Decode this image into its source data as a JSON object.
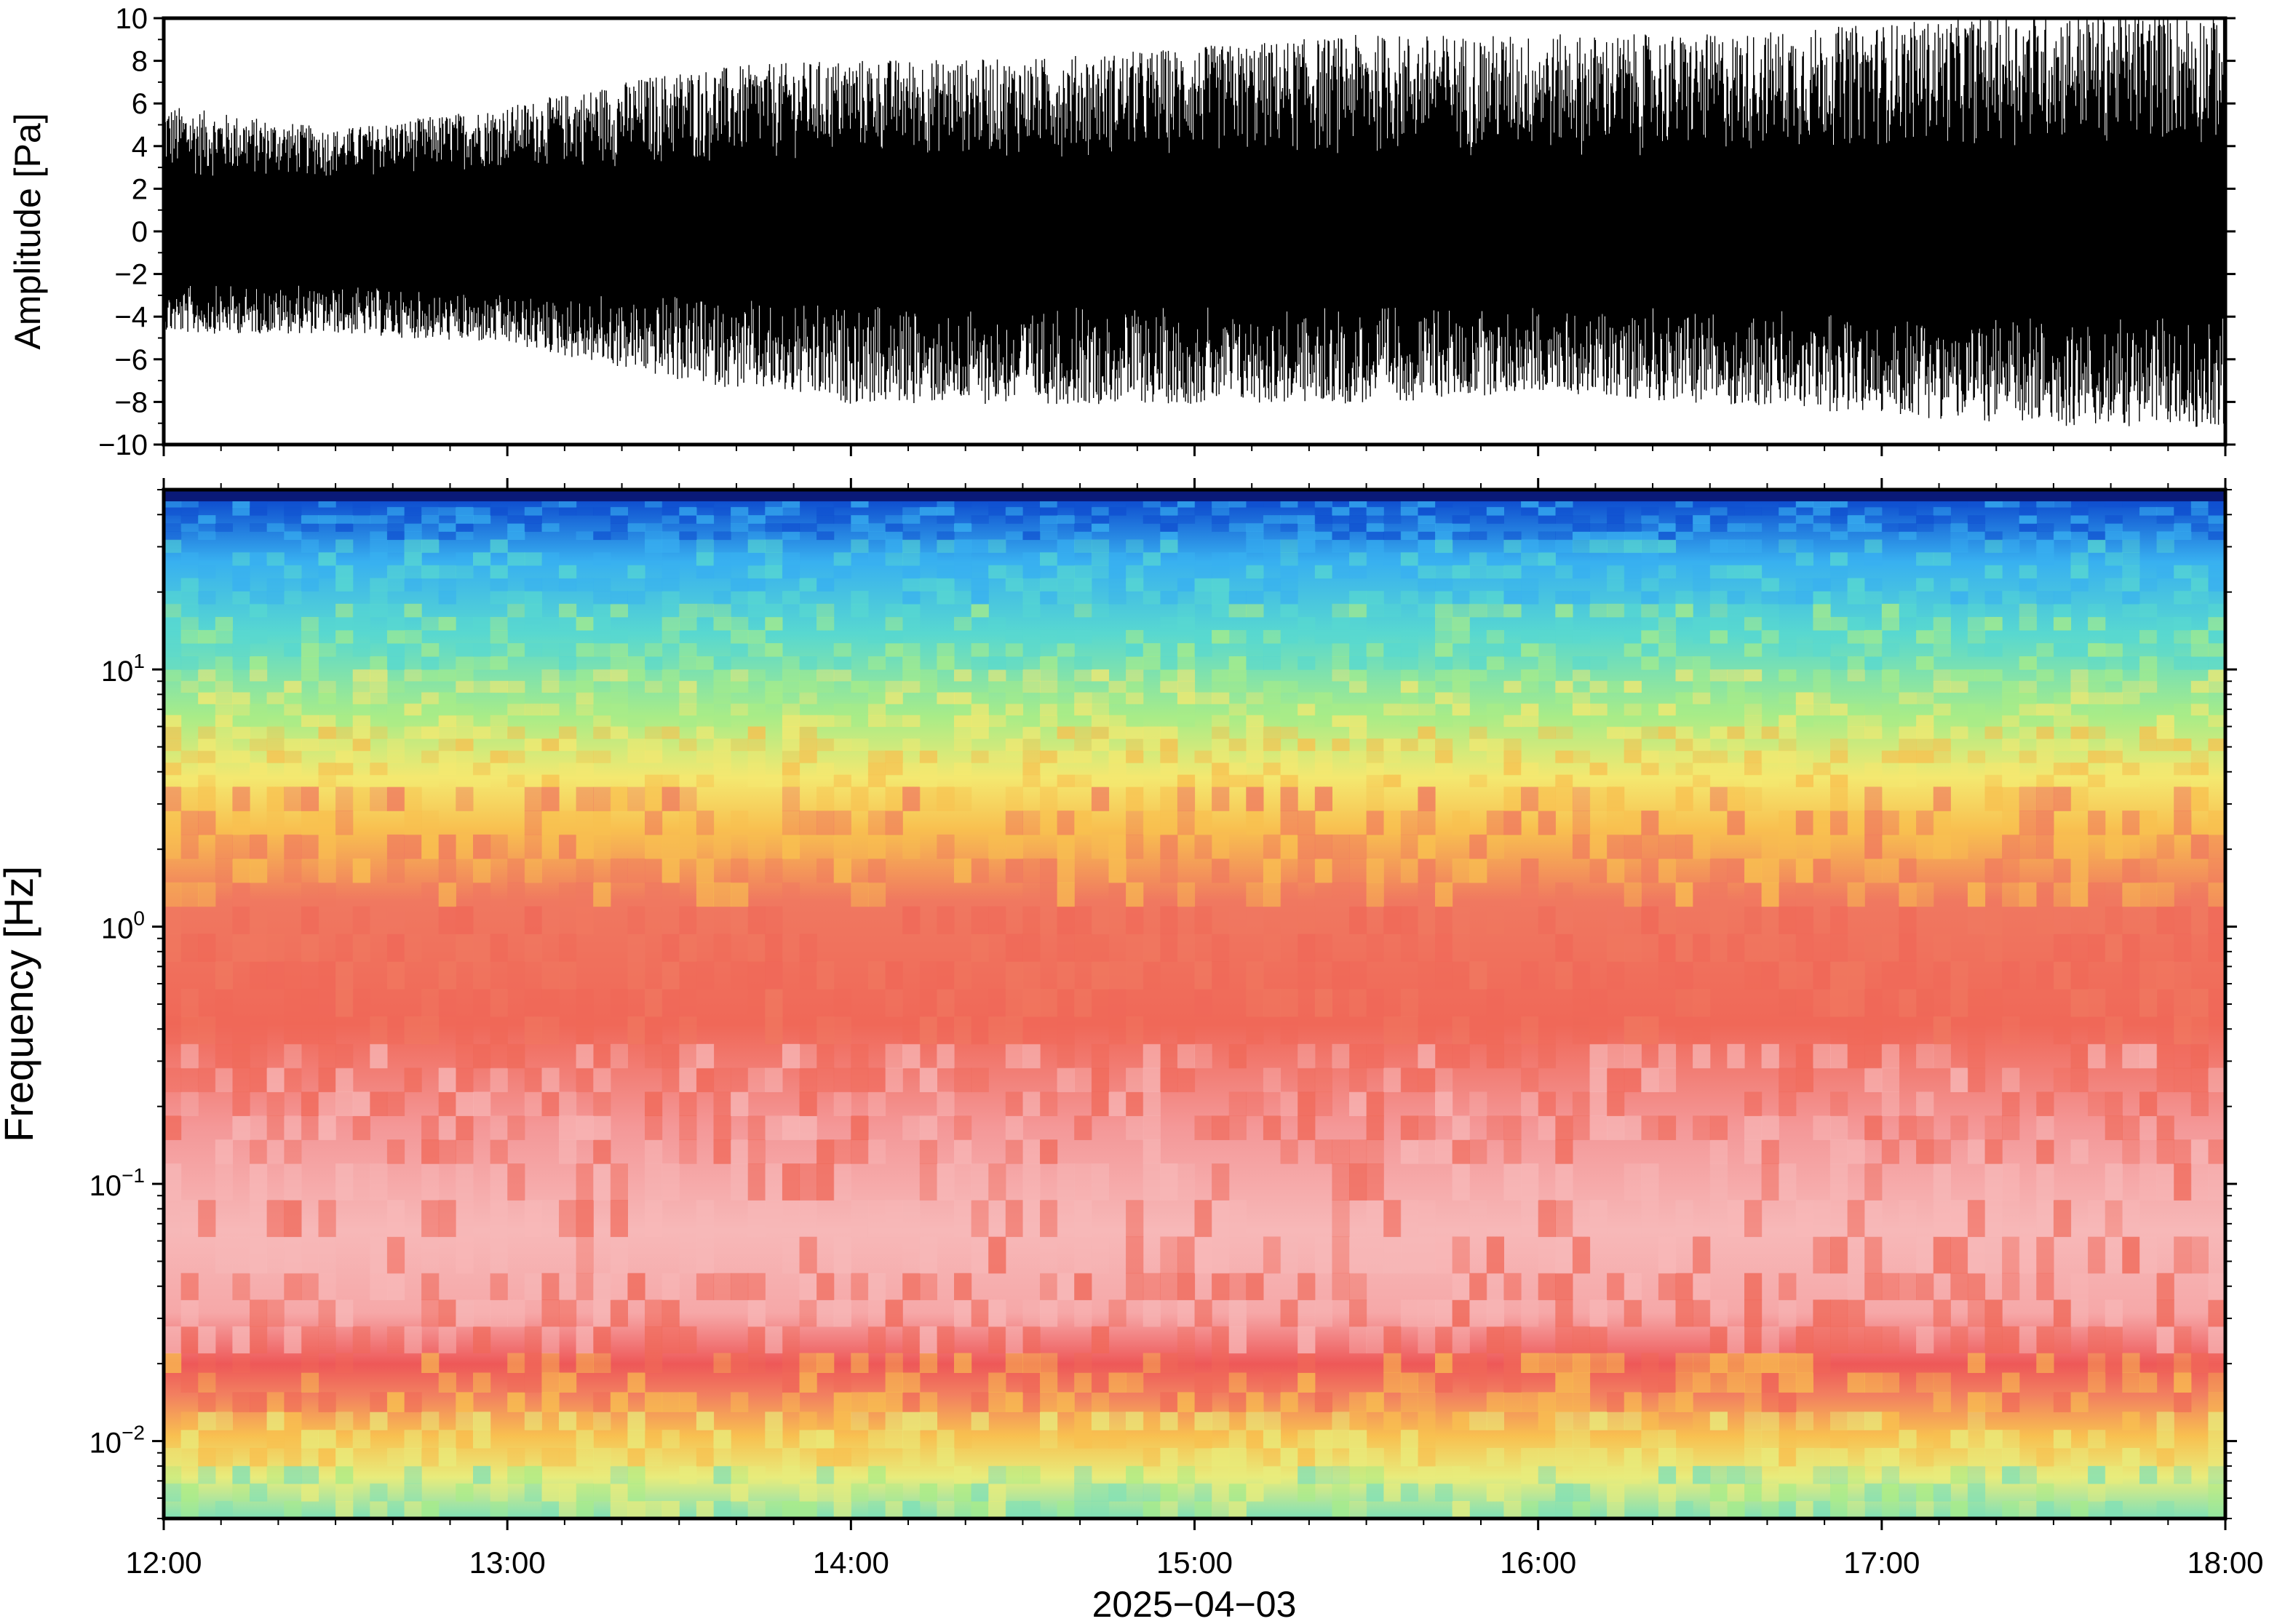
{
  "chart_data": [
    {
      "type": "line",
      "panel": "waveform",
      "title": "",
      "xlabel": "",
      "ylabel": "Amplitude [Pa]",
      "ylim": [
        -10,
        10
      ],
      "yticks": [
        10,
        8,
        6,
        4,
        2,
        0,
        -2,
        -4,
        -6,
        -8,
        -10
      ],
      "ytick_labels": [
        "10",
        "8",
        "6",
        "4",
        "2",
        "0",
        "−2",
        "−4",
        "−6",
        "−8",
        "−10"
      ],
      "x_range": [
        "12:00",
        "18:00"
      ],
      "envelope": {
        "x": [
          "12:00",
          "12:30",
          "13:00",
          "13:30",
          "14:00",
          "14:30",
          "15:00",
          "15:30",
          "16:00",
          "16:30",
          "17:00",
          "17:30",
          "18:00"
        ],
        "upper": [
          5.5,
          4.5,
          5.5,
          7.0,
          7.5,
          7.5,
          8.0,
          8.5,
          8.5,
          8.5,
          9.0,
          9.5,
          9.5
        ],
        "lower": [
          -4.5,
          -4.5,
          -5.0,
          -6.5,
          -7.5,
          -7.5,
          -7.5,
          -7.5,
          -7.0,
          -7.5,
          -8.0,
          -8.5,
          -8.5
        ],
        "core_upper": [
          2.5,
          2.5,
          3.0,
          3.0,
          3.5,
          3.5,
          3.5,
          3.5,
          3.5,
          3.5,
          4.0,
          4.0,
          4.0
        ],
        "core_lower": [
          -2.5,
          -2.5,
          -3.0,
          -3.0,
          -3.5,
          -3.5,
          -3.5,
          -3.5,
          -3.5,
          -3.5,
          -4.0,
          -4.0,
          -4.0
        ]
      }
    },
    {
      "type": "heatmap",
      "panel": "spectrogram",
      "title": "",
      "xlabel": "2025−04−03",
      "ylabel": "Frequency [Hz]",
      "y_scale": "log",
      "ylim": [
        0.005,
        50
      ],
      "ytick_values": [
        10,
        1,
        0.1,
        0.01
      ],
      "ytick_labels": [
        {
          "base": "10",
          "exp": "1"
        },
        {
          "base": "10",
          "exp": "0"
        },
        {
          "base": "10",
          "exp": "−1"
        },
        {
          "base": "10",
          "exp": "−2"
        }
      ],
      "xticks": [
        "12:00",
        "13:00",
        "14:00",
        "15:00",
        "16:00",
        "17:00",
        "18:00"
      ],
      "colormap": [
        "#7fe0b8",
        "#e8ec7c",
        "#f8c050",
        "#f06858",
        "#f7b8b8",
        "#f4e870",
        "#a8ec88",
        "#58d8d0",
        "#38b0f0",
        "#1050d0",
        "#0a1a78"
      ]
    }
  ]
}
